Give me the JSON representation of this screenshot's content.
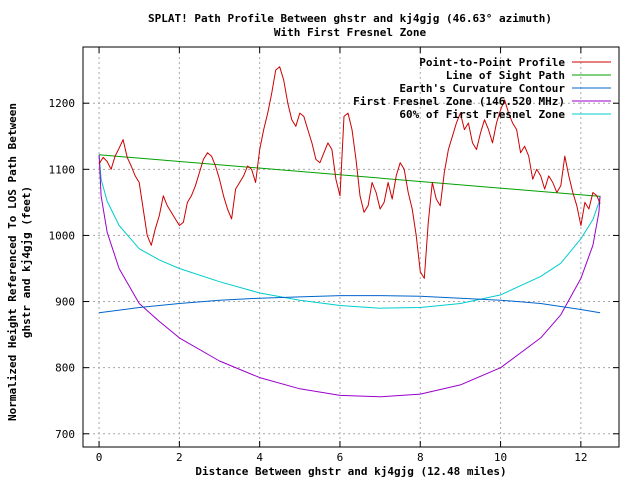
{
  "chart_data": {
    "type": "line",
    "title": "SPLAT! Path Profile Between ghstr and kj4gjg (46.63° azimuth)",
    "subtitle": "With First Fresnel Zone",
    "xlabel": "Distance Between ghstr and kj4gjg (12.48 miles)",
    "ylabel_line1": "Normalized Height Referenced To LOS Path Between",
    "ylabel_line2": "ghstr and kj4gjg (feet)",
    "xlim": [
      -0.4,
      12.95
    ],
    "ylim": [
      680,
      1285
    ],
    "xticks": [
      0,
      2,
      4,
      6,
      8,
      10,
      12
    ],
    "yticks": [
      700,
      800,
      900,
      1000,
      1100,
      1200
    ],
    "grid": true,
    "legend_position": "top-right",
    "series": [
      {
        "name": "Point-to-Point Profile",
        "color": "#cc0000",
        "x": [
          0,
          0.1,
          0.2,
          0.3,
          0.4,
          0.5,
          0.6,
          0.7,
          0.8,
          0.9,
          1.0,
          1.1,
          1.2,
          1.3,
          1.4,
          1.5,
          1.6,
          1.7,
          1.8,
          1.9,
          2.0,
          2.1,
          2.2,
          2.3,
          2.4,
          2.5,
          2.6,
          2.7,
          2.8,
          2.9,
          3.0,
          3.1,
          3.2,
          3.3,
          3.4,
          3.5,
          3.6,
          3.7,
          3.8,
          3.9,
          4.0,
          4.1,
          4.2,
          4.3,
          4.4,
          4.5,
          4.6,
          4.7,
          4.8,
          4.9,
          5.0,
          5.1,
          5.2,
          5.3,
          5.4,
          5.5,
          5.6,
          5.7,
          5.8,
          5.9,
          6.0,
          6.1,
          6.2,
          6.3,
          6.4,
          6.5,
          6.6,
          6.7,
          6.8,
          6.9,
          7.0,
          7.1,
          7.2,
          7.3,
          7.4,
          7.5,
          7.6,
          7.7,
          7.8,
          7.9,
          8.0,
          8.1,
          8.2,
          8.3,
          8.4,
          8.5,
          8.6,
          8.7,
          8.8,
          8.9,
          9.0,
          9.1,
          9.2,
          9.3,
          9.4,
          9.5,
          9.6,
          9.7,
          9.8,
          9.9,
          10.0,
          10.1,
          10.2,
          10.3,
          10.4,
          10.5,
          10.6,
          10.7,
          10.8,
          10.9,
          11.0,
          11.1,
          11.2,
          11.3,
          11.4,
          11.5,
          11.6,
          11.7,
          11.8,
          11.9,
          12.0,
          12.1,
          12.2,
          12.3,
          12.4,
          12.48
        ],
        "y": [
          1108,
          1118,
          1112,
          1100,
          1120,
          1132,
          1145,
          1118,
          1105,
          1090,
          1080,
          1040,
          1000,
          985,
          1010,
          1030,
          1060,
          1045,
          1035,
          1025,
          1015,
          1020,
          1050,
          1060,
          1075,
          1095,
          1115,
          1125,
          1120,
          1105,
          1085,
          1060,
          1040,
          1025,
          1070,
          1080,
          1090,
          1105,
          1100,
          1080,
          1130,
          1160,
          1185,
          1215,
          1250,
          1255,
          1235,
          1200,
          1175,
          1165,
          1185,
          1180,
          1160,
          1140,
          1115,
          1110,
          1125,
          1140,
          1130,
          1085,
          1060,
          1180,
          1185,
          1160,
          1115,
          1060,
          1035,
          1045,
          1080,
          1065,
          1040,
          1050,
          1080,
          1055,
          1090,
          1110,
          1100,
          1065,
          1040,
          1000,
          945,
          935,
          1020,
          1080,
          1055,
          1045,
          1095,
          1130,
          1150,
          1170,
          1185,
          1160,
          1170,
          1140,
          1130,
          1155,
          1175,
          1160,
          1140,
          1170,
          1190,
          1205,
          1185,
          1170,
          1160,
          1125,
          1135,
          1120,
          1085,
          1100,
          1090,
          1070,
          1090,
          1080,
          1065,
          1075,
          1120,
          1090,
          1065,
          1045,
          1015,
          1050,
          1040,
          1065,
          1060,
          1048
        ]
      },
      {
        "name": "Line of Sight Path",
        "color": "#00a000",
        "x": [
          0,
          12.48
        ],
        "y": [
          1122,
          1059
        ]
      },
      {
        "name": "Earth's Curvature Contour",
        "color": "#0066cc",
        "x": [
          0,
          1,
          2,
          3,
          4,
          5,
          6,
          7,
          8,
          9,
          10,
          11,
          12,
          12.48
        ],
        "y": [
          883,
          891,
          897,
          902,
          905,
          907,
          909,
          909,
          908,
          905,
          902,
          897,
          888,
          883
        ]
      },
      {
        "name": "First Fresnel Zone (146.520 MHz)",
        "color": "#9900cc",
        "x": [
          0,
          0.05,
          0.2,
          0.5,
          1,
          1.5,
          2,
          3,
          4,
          5,
          6,
          7,
          8,
          9,
          10,
          11,
          11.5,
          12,
          12.3,
          12.45,
          12.48
        ],
        "y": [
          1122,
          1060,
          1005,
          950,
          897,
          870,
          845,
          810,
          785,
          768,
          758,
          756,
          760,
          774,
          800,
          845,
          880,
          935,
          985,
          1035,
          1060
        ]
      },
      {
        "name": "60% of First Fresnel Zone",
        "color": "#00cccc",
        "x": [
          0,
          0.05,
          0.2,
          0.5,
          1,
          1.5,
          2,
          3,
          4,
          5,
          6,
          7,
          8,
          9,
          10,
          11,
          11.5,
          12,
          12.3,
          12.45,
          12.48
        ],
        "y": [
          1122,
          1085,
          1052,
          1015,
          980,
          963,
          950,
          930,
          913,
          902,
          894,
          890,
          891,
          897,
          910,
          938,
          958,
          995,
          1024,
          1050,
          1059
        ]
      }
    ]
  }
}
